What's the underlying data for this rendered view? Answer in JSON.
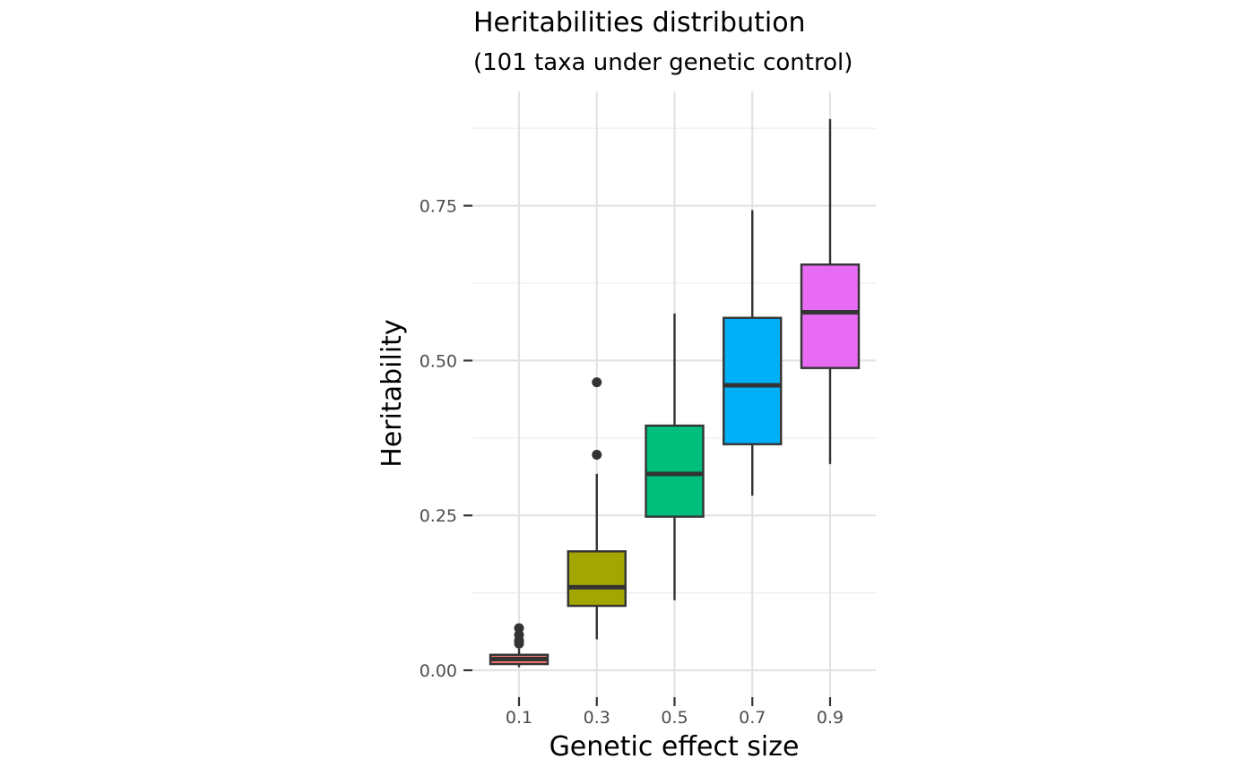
{
  "chart_data": {
    "type": "box",
    "title": "Heritabilities distribution",
    "subtitle": "(101 taxa under genetic control)",
    "xlabel": "Genetic effect size",
    "ylabel": "Heritability",
    "ylim": [
      -0.03,
      0.92
    ],
    "yticks": [
      0.0,
      0.25,
      0.5,
      0.75
    ],
    "ytick_labels": [
      "0.00",
      "0.25",
      "0.50",
      "0.75"
    ],
    "y_minor_gridlines": [
      0.125,
      0.375,
      0.625,
      0.875
    ],
    "grid": true,
    "legend": "none",
    "categories": [
      "0.1",
      "0.3",
      "0.5",
      "0.7",
      "0.9"
    ],
    "boxes": [
      {
        "category": "0.1",
        "color": "#F8766D",
        "whisker_low": 0.005,
        "q1": 0.01,
        "median": 0.018,
        "q3": 0.025,
        "whisker_high": 0.035,
        "outliers": [
          0.043,
          0.048,
          0.057,
          0.068
        ]
      },
      {
        "category": "0.3",
        "color": "#A3A500",
        "whisker_low": 0.05,
        "q1": 0.104,
        "median": 0.134,
        "q3": 0.192,
        "whisker_high": 0.317,
        "outliers": [
          0.348,
          0.465
        ]
      },
      {
        "category": "0.5",
        "color": "#00BF7D",
        "whisker_low": 0.113,
        "q1": 0.248,
        "median": 0.317,
        "q3": 0.395,
        "whisker_high": 0.576,
        "outliers": []
      },
      {
        "category": "0.7",
        "color": "#00B0F6",
        "whisker_low": 0.282,
        "q1": 0.365,
        "median": 0.46,
        "q3": 0.569,
        "whisker_high": 0.743,
        "outliers": []
      },
      {
        "category": "0.9",
        "color": "#E76BF3",
        "whisker_low": 0.333,
        "q1": 0.488,
        "median": 0.578,
        "q3": 0.655,
        "whisker_high": 0.89,
        "outliers": []
      }
    ]
  }
}
